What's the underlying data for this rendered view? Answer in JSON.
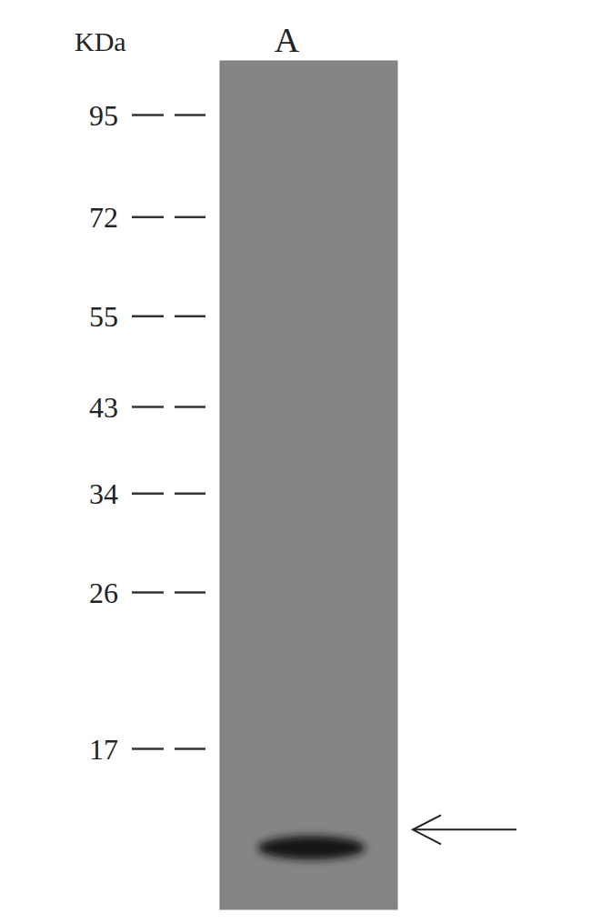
{
  "chart_data": {
    "type": "blot",
    "y_label": "KDa",
    "categories": [
      "A"
    ],
    "values": [
      13
    ],
    "color": "#161616",
    "ylim": [
      11,
      110
    ],
    "yticks": [
      95,
      72,
      55,
      43,
      34,
      26,
      17
    ],
    "log": "y"
  }
}
